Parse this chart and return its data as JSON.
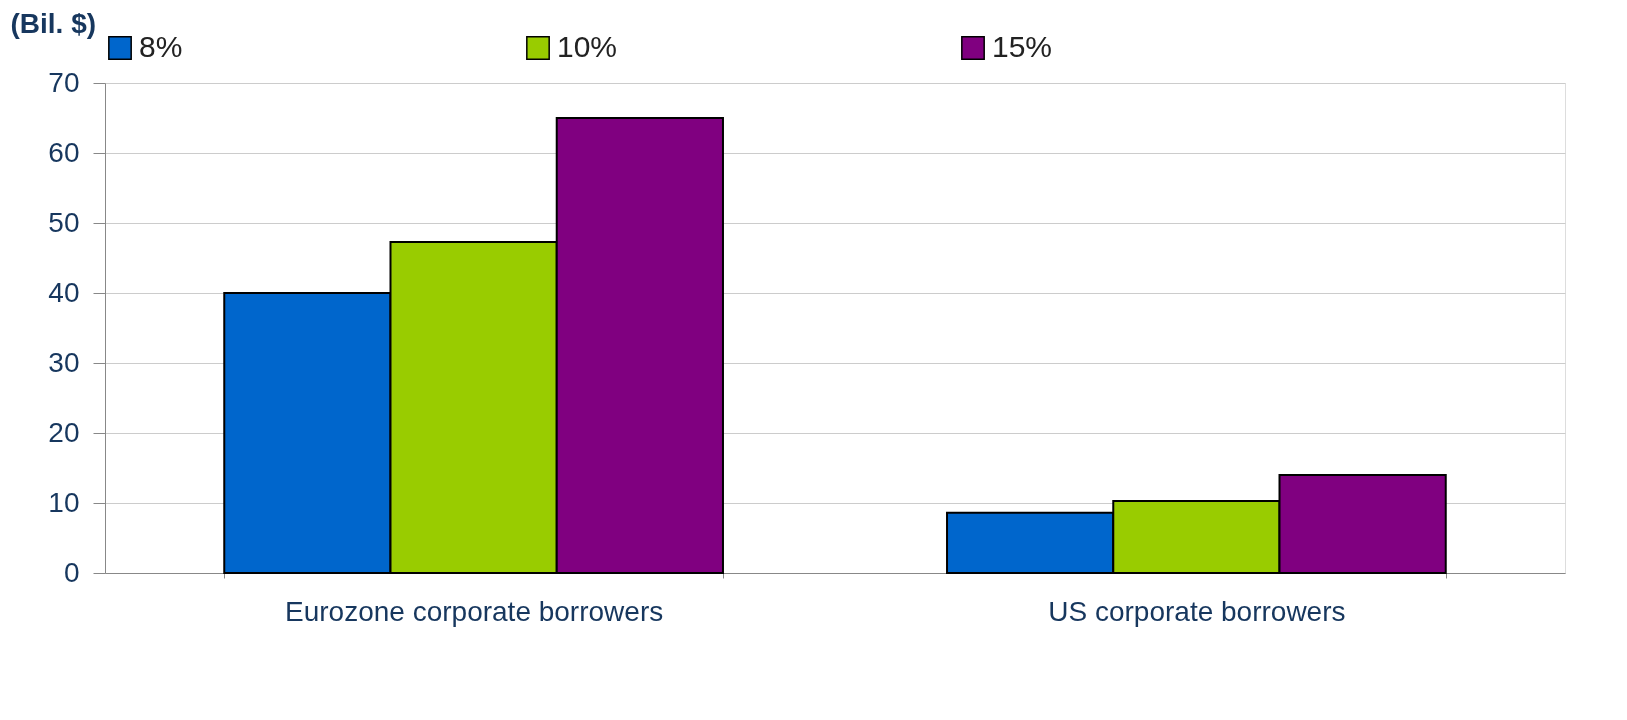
{
  "chart_data": {
    "type": "bar",
    "ylabel": "(Bil. $)",
    "categories": [
      "Eurozone corporate borrowers",
      "US corporate borrowers"
    ],
    "series": [
      {
        "name": "8%",
        "color": "#0066cc",
        "values": [
          40,
          8.6
        ]
      },
      {
        "name": "10%",
        "color": "#99cc00",
        "values": [
          47.3,
          10.3
        ]
      },
      {
        "name": "15%",
        "color": "#800080",
        "values": [
          65,
          14
        ]
      }
    ],
    "ylim": [
      0,
      70
    ],
    "yticks": [
      0,
      10,
      20,
      30,
      40,
      50,
      60,
      70
    ],
    "grid": "y",
    "legend": "top"
  }
}
